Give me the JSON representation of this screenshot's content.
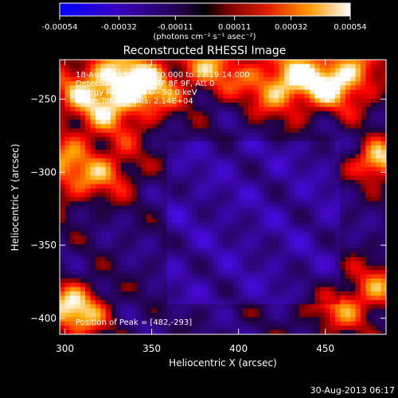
{
  "colorbar": {
    "ticks": [
      "-0.00054",
      "-0.00032",
      "-0.00011",
      "0.00011",
      "0.00032",
      "0.00054"
    ],
    "tick_values": [
      -0.00054,
      -0.00032,
      -0.00011,
      0.00011,
      0.00032,
      0.00054
    ],
    "units_label": "(photons cm⁻² s⁻¹ asec⁻²)",
    "min": -0.00054,
    "max": 0.00054
  },
  "chart_data": {
    "type": "heatmap",
    "title": "Reconstructed RHESSI Image",
    "xlabel": "Heliocentric X (arcsec)",
    "ylabel": "Heliocentric Y (arcsec)",
    "xlim": [
      297,
      485
    ],
    "ylim": [
      -411,
      -223
    ],
    "xticks": [
      300,
      350,
      400,
      450
    ],
    "yticks": [
      -250,
      -300,
      -350,
      -400
    ],
    "xtick_labels": [
      "300",
      "350",
      "400",
      "450"
    ],
    "ytick_labels": [
      "−250",
      "−300",
      "−350",
      "−400"
    ],
    "annotations": [
      "18-Aug-2013 23:14:20.000 to 23:19:14.000",
      "Detectors: 3F 5F 6F 7F 8F 9F, Att 0",
      "Energy Range: 25.0 - 50.0 keV",
      "Clean    Total counts: 2.14E+04"
    ],
    "peak_label": "Position of Peak = [482,-293]",
    "peak": [
      482,
      -293
    ],
    "colormap": "red-temperature",
    "colors": {
      "negative": "#2a0a7a",
      "zero": "#000000",
      "positive": "#ff6a00",
      "max": "#ffffff"
    }
  },
  "footer": {
    "timestamp": "30-Aug-2013 06:17"
  }
}
